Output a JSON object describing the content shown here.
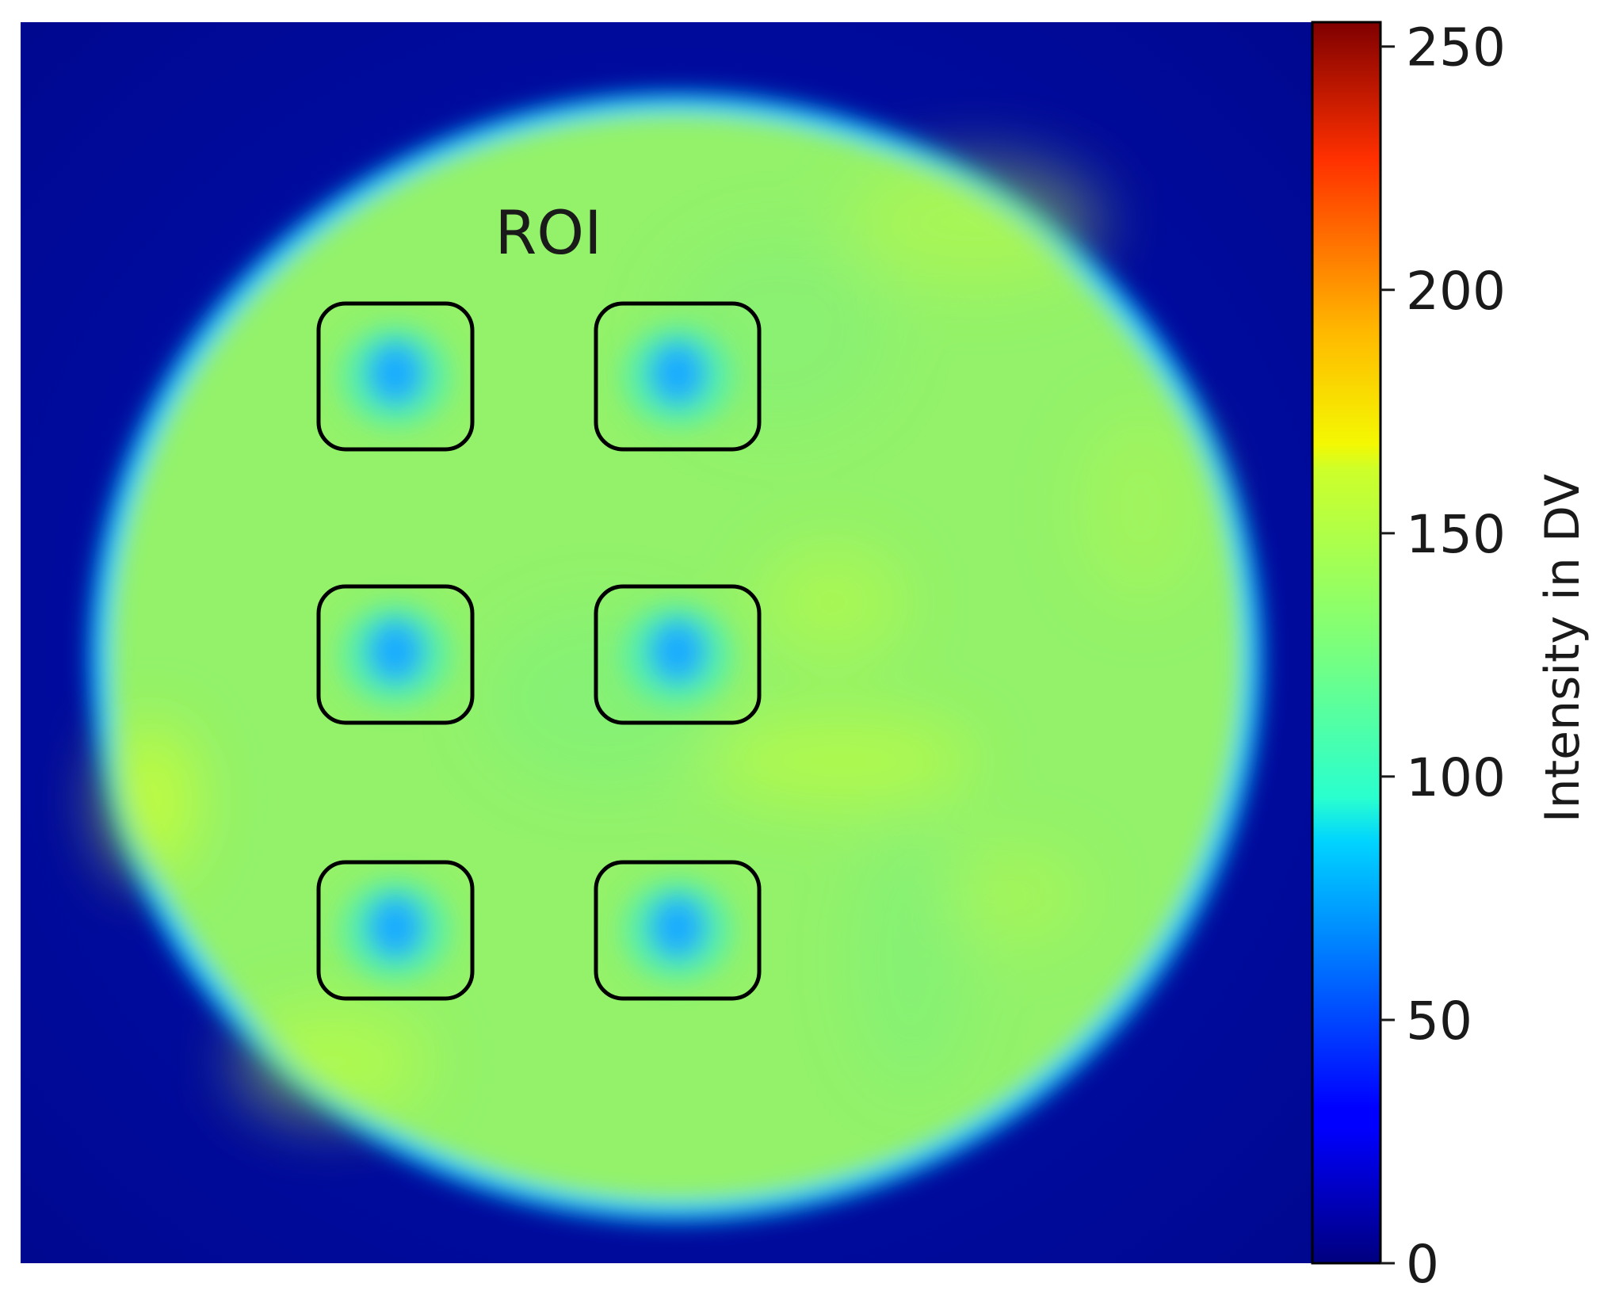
{
  "chart_data": {
    "type": "heatmap",
    "title": "",
    "annotation": "ROI",
    "colorbar": {
      "label": "Intensity in DV",
      "range": [
        0,
        255
      ],
      "ticks": [
        0,
        50,
        100,
        150,
        200,
        250
      ],
      "tick_labels": [
        "0",
        "50",
        "100",
        "150",
        "200",
        "250"
      ],
      "colormap": "jet",
      "placement": "right"
    },
    "field": {
      "background_value": 15,
      "disc_value": 135,
      "roi_value": 85
    },
    "roi_count": 6,
    "colors": {
      "background": "#000a9e",
      "disc": "#93f26a",
      "roi_spot": "#1aacff",
      "roi_outline": "#000000"
    }
  }
}
